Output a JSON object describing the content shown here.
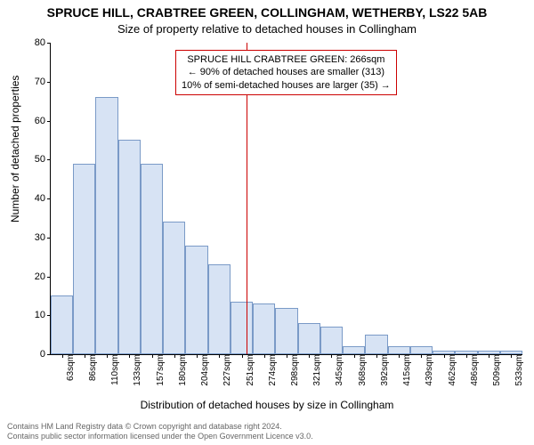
{
  "chart": {
    "type": "histogram",
    "title_line1": "SPRUCE HILL, CRABTREE GREEN, COLLINGHAM, WETHERBY, LS22 5AB",
    "title_line2": "Size of property relative to detached houses in Collingham",
    "title_fontsize": 14,
    "subtitle_fontsize": 13,
    "ylabel": "Number of detached properties",
    "xlabel": "Distribution of detached houses by size in Collingham",
    "label_fontsize": 12,
    "tick_fontsize": 11,
    "ylim": [
      0,
      80
    ],
    "ytick_step": 10,
    "background_color": "#ffffff",
    "bar_fill": "#d7e3f4",
    "bar_border": "#7a9ac7",
    "categories": [
      "63sqm",
      "86sqm",
      "110sqm",
      "133sqm",
      "157sqm",
      "180sqm",
      "204sqm",
      "227sqm",
      "251sqm",
      "274sqm",
      "298sqm",
      "321sqm",
      "345sqm",
      "368sqm",
      "392sqm",
      "415sqm",
      "439sqm",
      "462sqm",
      "486sqm",
      "509sqm",
      "533sqm"
    ],
    "values": [
      15,
      49,
      66,
      55,
      49,
      34,
      28,
      23,
      13.5,
      13,
      12,
      8,
      7,
      2,
      5,
      2,
      2,
      1,
      1,
      1,
      1
    ],
    "vline_index": 8.7,
    "vline_color": "#cc0000",
    "annotation": {
      "line1": "SPRUCE HILL CRABTREE GREEN: 266sqm",
      "line2": "← 90% of detached houses are smaller (313)",
      "line3": "10% of semi-detached houses are larger (35) →",
      "border_color": "#cc0000",
      "fontsize": 11
    },
    "footer_line1": "Contains HM Land Registry data © Crown copyright and database right 2024.",
    "footer_line2": "Contains public sector information licensed under the Open Government Licence v3.0.",
    "footer_color": "#666666",
    "footer_fontsize": 9
  }
}
